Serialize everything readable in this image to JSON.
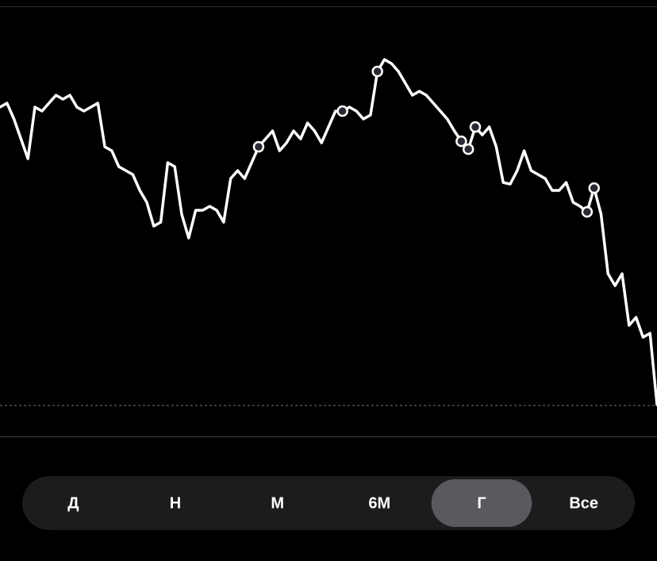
{
  "chart_data": {
    "type": "line",
    "color": "#ffffff",
    "values": [
      415,
      420,
      400,
      375,
      350,
      415,
      410,
      420,
      430,
      425,
      430,
      415,
      410,
      415,
      420,
      365,
      360,
      340,
      335,
      330,
      310,
      295,
      265,
      270,
      345,
      340,
      280,
      250,
      285,
      285,
      290,
      285,
      270,
      325,
      335,
      325,
      345,
      365,
      375,
      385,
      360,
      370,
      385,
      375,
      395,
      385,
      370,
      390,
      410,
      410,
      415,
      410,
      400,
      405,
      460,
      475,
      470,
      460,
      445,
      430,
      435,
      430,
      420,
      410,
      400,
      385,
      372,
      362,
      390,
      380,
      390,
      365,
      320,
      318,
      335,
      360,
      335,
      330,
      325,
      310,
      310,
      320,
      295,
      290,
      283,
      313,
      280,
      205,
      190,
      205,
      140,
      150,
      125,
      130,
      40
    ],
    "ylim": [
      0,
      540
    ],
    "reference_line": 39,
    "markers": [
      37,
      49,
      54,
      66,
      67,
      68,
      84,
      85
    ]
  },
  "tabs": {
    "items": [
      "Д",
      "Н",
      "М",
      "6М",
      "Г",
      "Все"
    ],
    "selected": 4
  }
}
